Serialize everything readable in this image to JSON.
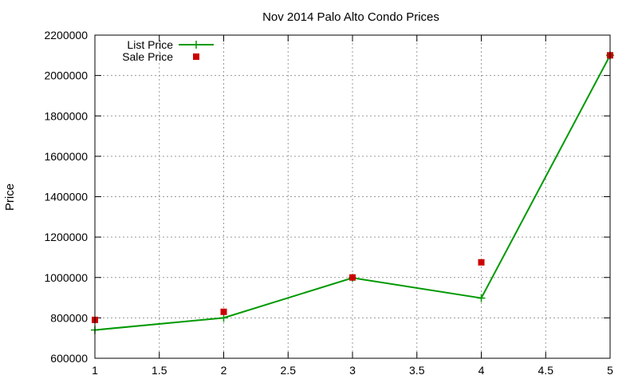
{
  "chart_data": {
    "type": "line",
    "title": "Nov 2014 Palo Alto Condo Prices",
    "xlabel": "",
    "ylabel": "Price",
    "xlim": [
      1,
      5
    ],
    "ylim": [
      600000,
      2200000
    ],
    "x_ticks": [
      "1",
      "1.5",
      "2",
      "2.5",
      "3",
      "3.5",
      "4",
      "4.5",
      "5"
    ],
    "y_ticks": [
      "600000",
      "800000",
      "1000000",
      "1200000",
      "1400000",
      "1600000",
      "1800000",
      "2000000",
      "2200000"
    ],
    "grid": true,
    "legend_position": "top-left",
    "series": [
      {
        "name": "List Price",
        "style": "line+marker",
        "marker": "plus",
        "color": "#009900",
        "x": [
          1,
          2,
          3,
          4,
          5
        ],
        "y": [
          740000,
          800000,
          998000,
          898000,
          2100000
        ]
      },
      {
        "name": "Sale Price",
        "style": "points",
        "marker": "square",
        "color": "#cc0000",
        "x": [
          1,
          2,
          3,
          4,
          5
        ],
        "y": [
          790000,
          830000,
          1000000,
          1075000,
          2100000
        ]
      }
    ]
  }
}
